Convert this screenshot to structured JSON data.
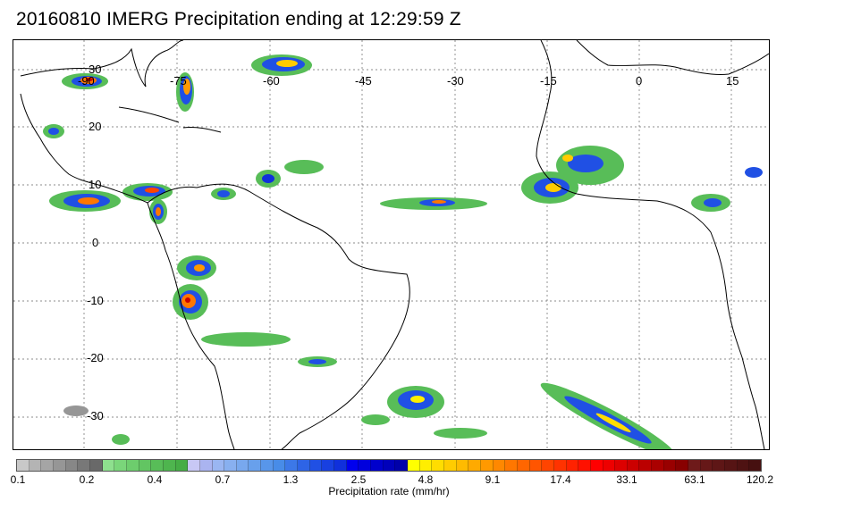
{
  "title": "20160810 IMERG Precipitation ending at 12:29:59 Z",
  "map": {
    "lon_labels": [
      "-90",
      "-75",
      "-60",
      "-45",
      "-30",
      "-15",
      "0",
      "15"
    ],
    "lat_labels": [
      "30",
      "20",
      "10",
      "0",
      "-10",
      "-20",
      "-30"
    ],
    "gridlines": "dotted",
    "land_outline_color": "#000000"
  },
  "colorbar": {
    "colors": [
      "#c8c8c8",
      "#b4b4b4",
      "#a5a5a5",
      "#969696",
      "#878787",
      "#787878",
      "#696969",
      "#8ee08e",
      "#7ad67a",
      "#6dcd6d",
      "#62c562",
      "#58bd58",
      "#4eb54e",
      "#45ad45",
      "#c8c8f5",
      "#aab4f0",
      "#9ab6f2",
      "#88b0f0",
      "#78a8ee",
      "#68a0ec",
      "#5896ea",
      "#488ce8",
      "#3c78e8",
      "#2e64e6",
      "#2050e4",
      "#1840e0",
      "#1030dc",
      "#0000ee",
      "#0000dd",
      "#0000cc",
      "#0000bb",
      "#0000aa",
      "#ffff00",
      "#ffee00",
      "#ffdd00",
      "#ffcc00",
      "#ffbb00",
      "#ffaa00",
      "#ff9900",
      "#ff8800",
      "#ff7700",
      "#ff6600",
      "#ff5500",
      "#ff4400",
      "#ff3300",
      "#ff2200",
      "#ff1100",
      "#ff0000",
      "#ee0000",
      "#dd0000",
      "#cc0000",
      "#bb0000",
      "#aa0000",
      "#990000",
      "#880000",
      "#6e1a1a",
      "#661818",
      "#5e1616",
      "#561414",
      "#4e1212",
      "#461010"
    ],
    "tick_labels": [
      "0.1",
      "0.2",
      "0.4",
      "0.7",
      "1.3",
      "2.5",
      "4.8",
      "9.1",
      "17.4",
      "33.1",
      "63.1",
      "120.2"
    ],
    "label": "Precipitation rate (mm/hr)"
  }
}
